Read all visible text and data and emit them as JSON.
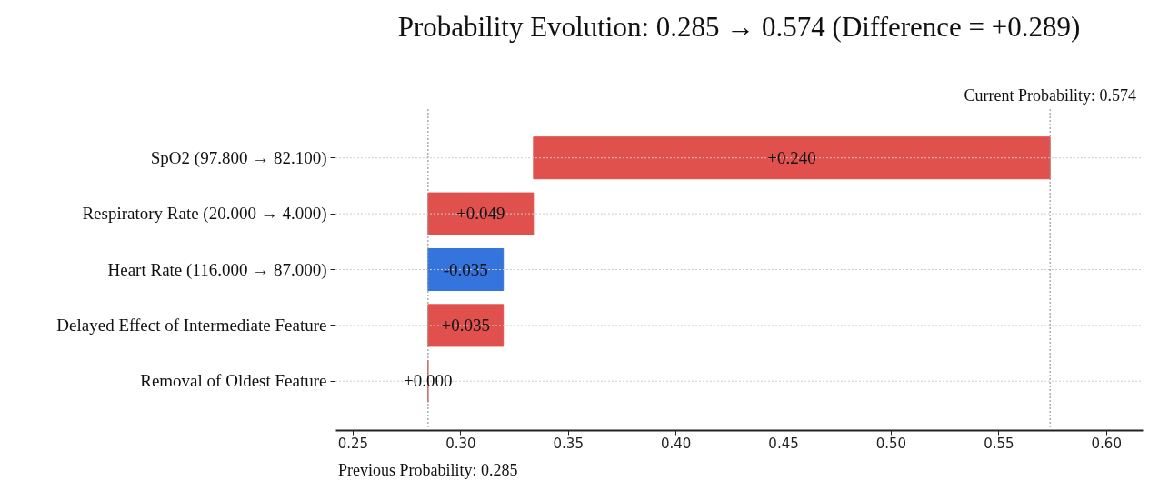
{
  "chart_data": {
    "type": "bar",
    "orientation": "horizontal",
    "title": "Probability Evolution: 0.285 → 0.574 (Difference = +0.289)",
    "categories": [
      "SpO2 (97.800 → 82.100)",
      "Respiratory Rate (20.000 → 4.000)",
      "Heart Rate (116.000 → 87.000)",
      "Delayed Effect of Intermediate Feature",
      "Removal of Oldest Feature"
    ],
    "base": [
      0.334,
      0.285,
      0.32,
      0.285,
      0.285
    ],
    "values": [
      0.24,
      0.049,
      -0.035,
      0.035,
      0.0
    ],
    "colors": [
      "#e0514e",
      "#e0514e",
      "#3474dc",
      "#e0514e",
      "#e0514e"
    ],
    "value_labels": [
      "+0.240",
      "+0.049",
      "-0.035",
      "+0.035",
      "+0.000"
    ],
    "xlim": [
      0.242,
      0.617
    ],
    "xticks": [
      {
        "value": 0.25,
        "label": "0.25"
      },
      {
        "value": 0.3,
        "label": "0.30"
      },
      {
        "value": 0.35,
        "label": "0.35"
      },
      {
        "value": 0.4,
        "label": "0.40"
      },
      {
        "value": 0.45,
        "label": "0.45"
      },
      {
        "value": 0.5,
        "label": "0.50"
      },
      {
        "value": 0.55,
        "label": "0.55"
      },
      {
        "value": 0.6,
        "label": "0.60"
      }
    ],
    "ref_lines": [
      {
        "axis": "x",
        "value": 0.285,
        "label": "Previous Probability: 0.285",
        "color": "#999999",
        "line_style": "dotted"
      },
      {
        "axis": "x",
        "value": 0.574,
        "label": "Current Probability: 0.574",
        "color": "#999999",
        "line_style": "dotted"
      }
    ],
    "grid": "y"
  }
}
